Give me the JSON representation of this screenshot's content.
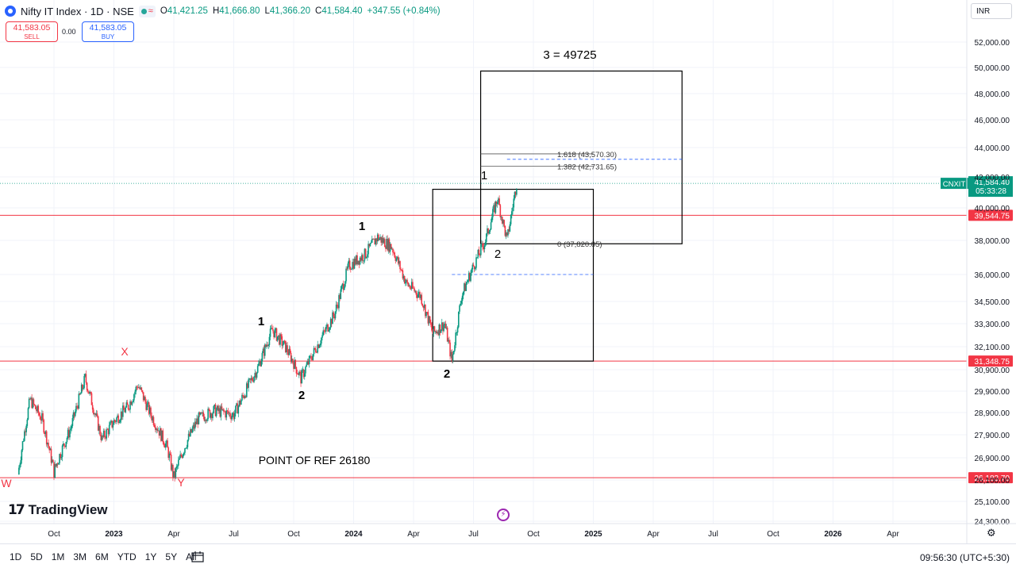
{
  "header": {
    "symbol_title": "Nifty IT Index · 1D · NSE",
    "ohlc": {
      "open_label": "O",
      "open": "41,421.25",
      "high_label": "H",
      "high": "41,666.80",
      "low_label": "L",
      "low": "41,366.20",
      "close_label": "C",
      "close": "41,584.40",
      "change": "+347.55 (+0.84%)"
    },
    "indicator_icon": "wave-icon"
  },
  "trade": {
    "sell_price": "41,583.05",
    "sell_label": "SELL",
    "spread": "0.00",
    "buy_price": "41,583.05",
    "buy_label": "BUY"
  },
  "currency": "INR",
  "branding": {
    "logo_text": "TradingView"
  },
  "bottom_bar": {
    "ranges": [
      "1D",
      "5D",
      "1M",
      "3M",
      "6M",
      "YTD",
      "1Y",
      "5Y",
      "All"
    ],
    "clock": "09:56:30 (UTC+5:30)"
  },
  "colors": {
    "up": "#089981",
    "down": "#f23645",
    "axis_text": "#131722",
    "hline": "#f23645",
    "current_badge": "#089981",
    "accent": "#2962ff"
  },
  "chart_data": {
    "type": "candlestick",
    "title": "Nifty IT Index · 1D · NSE",
    "price_scale": {
      "currency": "INR",
      "ticks": [
        24300,
        25100,
        26100,
        26900,
        27900,
        28900,
        29900,
        30900,
        32100,
        33300,
        34500,
        36000,
        38000,
        40000,
        42000,
        44000,
        46000,
        48000,
        50000,
        52000
      ],
      "tick_labels": [
        "24,300.00",
        "25,100.00",
        "26,100.00",
        "26,900.00",
        "27,900.00",
        "28,900.00",
        "29,900.00",
        "30,900.00",
        "32,100.00",
        "33,300.00",
        "34,500.00",
        "36,000.00",
        "38,000.00",
        "40,000.00",
        "42,000.00",
        "44,000.00",
        "46,000.00",
        "48,000.00",
        "50,000.00",
        "52,000.00"
      ]
    },
    "time_scale": {
      "labels": [
        "Oct",
        "2023",
        "Apr",
        "Jul",
        "Oct",
        "2024",
        "Apr",
        "Jul",
        "Oct",
        "2025",
        "Apr",
        "Jul",
        "Oct",
        "2026",
        "Apr"
      ],
      "label_months": [
        2022.75,
        2023.0,
        2023.25,
        2023.5,
        2023.75,
        2024.0,
        2024.25,
        2024.5,
        2024.75,
        2025.0,
        2025.25,
        2025.5,
        2025.75,
        2026.0,
        2026.25
      ],
      "bold": [
        "2023",
        "2024",
        "2025",
        "2026"
      ]
    },
    "price_path": [
      [
        2022.6,
        26300
      ],
      [
        2022.65,
        29500
      ],
      [
        2022.7,
        28600
      ],
      [
        2022.75,
        26400
      ],
      [
        2022.82,
        28200
      ],
      [
        2022.88,
        30500
      ],
      [
        2022.95,
        27700
      ],
      [
        2023.0,
        28500
      ],
      [
        2023.06,
        29200
      ],
      [
        2023.1,
        30200
      ],
      [
        2023.15,
        28900
      ],
      [
        2023.22,
        27400
      ],
      [
        2023.25,
        26180
      ],
      [
        2023.3,
        27500
      ],
      [
        2023.35,
        28600
      ],
      [
        2023.42,
        29000
      ],
      [
        2023.5,
        28800
      ],
      [
        2023.55,
        29900
      ],
      [
        2023.6,
        31000
      ],
      [
        2023.66,
        33000
      ],
      [
        2023.72,
        32000
      ],
      [
        2023.78,
        30500
      ],
      [
        2023.85,
        32200
      ],
      [
        2023.92,
        33800
      ],
      [
        2023.98,
        36500
      ],
      [
        2024.05,
        37200
      ],
      [
        2024.1,
        38200
      ],
      [
        2024.16,
        37600
      ],
      [
        2024.22,
        35500
      ],
      [
        2024.28,
        34800
      ],
      [
        2024.33,
        32800
      ],
      [
        2024.38,
        33300
      ],
      [
        2024.41,
        31349
      ],
      [
        2024.45,
        34800
      ],
      [
        2024.5,
        36500
      ],
      [
        2024.55,
        38000
      ],
      [
        2024.6,
        40600
      ],
      [
        2024.64,
        38000
      ],
      [
        2024.68,
        41584
      ]
    ],
    "current_price": {
      "symbol": "CNXIT",
      "value": "41,584.40",
      "countdown": "05:33:28"
    },
    "horizontal_lines": [
      {
        "price": 39544.75,
        "label": "39,544.75"
      },
      {
        "price": 31348.75,
        "label": "31,348.75"
      },
      {
        "price": 26183.7,
        "label": "26,183.70"
      }
    ],
    "fib_levels": [
      {
        "price": 43570.3,
        "label": "1.618 (43,570.30)"
      },
      {
        "price": 42731.65,
        "label": "1.382 (42,731.65)"
      },
      {
        "price": 37820.85,
        "label": "0 (37,820.85)"
      }
    ],
    "annotations": {
      "target": "3 = 49725",
      "reference": "POINT OF REF 26180",
      "waves": [
        "1",
        "2",
        "1",
        "2",
        "1",
        "2"
      ],
      "red_labels": [
        "X",
        "W",
        "Y"
      ]
    }
  }
}
